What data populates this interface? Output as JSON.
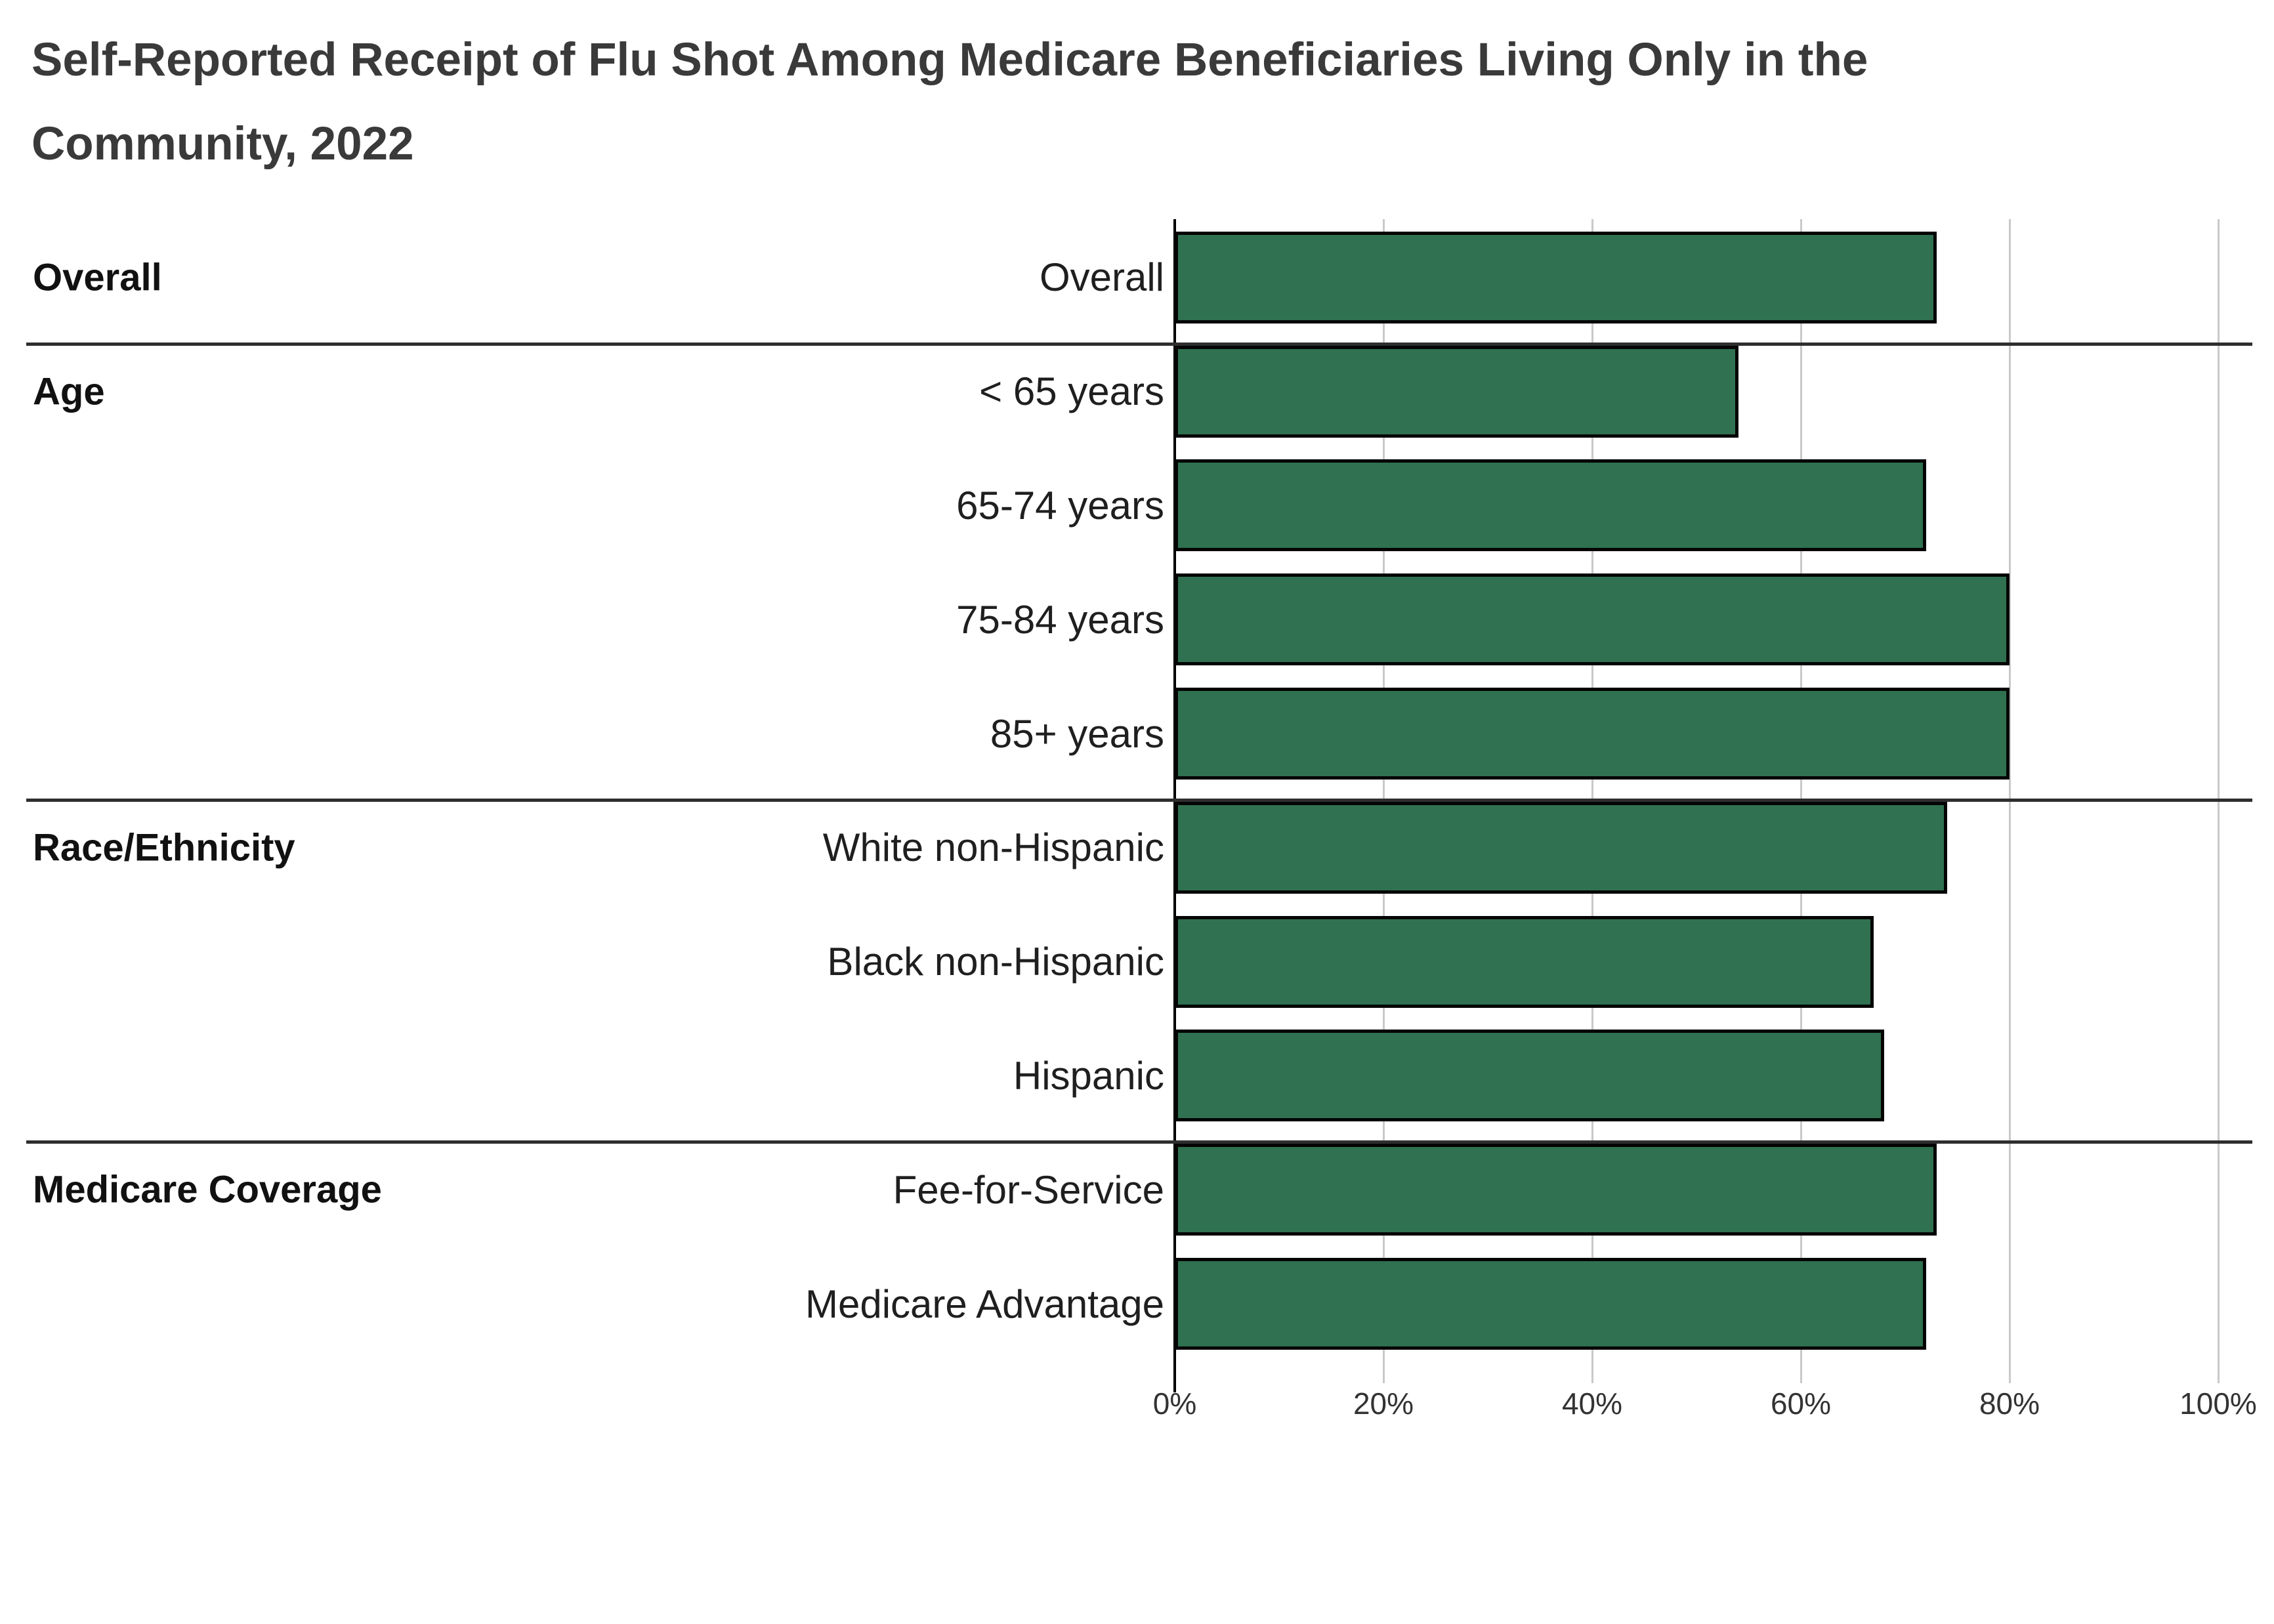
{
  "title_lines": [
    "Self-Reported Receipt of Flu Shot Among Medicare Beneficiaries Living Only in the",
    "Community, 2022"
  ],
  "chart_data": {
    "type": "bar",
    "orientation": "horizontal",
    "title": "Self-Reported Receipt of Flu Shot Among Medicare Beneficiaries Living Only in the Community, 2022",
    "unit": "percent",
    "xlim": [
      0,
      100
    ],
    "x_ticks": [
      "0%",
      "20%",
      "40%",
      "60%",
      "80%",
      "100%"
    ],
    "grid": true,
    "legend": "none",
    "groups": [
      {
        "label": "Overall",
        "items": [
          {
            "category": "Overall",
            "value": 73
          }
        ]
      },
      {
        "label": "Age",
        "items": [
          {
            "category": "< 65 years",
            "value": 54
          },
          {
            "category": "65-74 years",
            "value": 72
          },
          {
            "category": "75-84 years",
            "value": 80
          },
          {
            "category": "85+ years",
            "value": 80
          }
        ]
      },
      {
        "label": "Race/Ethnicity",
        "items": [
          {
            "category": "White non-Hispanic",
            "value": 74
          },
          {
            "category": "Black non-Hispanic",
            "value": 67
          },
          {
            "category": "Hispanic",
            "value": 68
          }
        ]
      },
      {
        "label": "Medicare Coverage",
        "items": [
          {
            "category": "Fee-for-Service",
            "value": 73
          },
          {
            "category": "Medicare Advantage",
            "value": 72
          }
        ]
      }
    ]
  },
  "colors": {
    "bar_fill": "#2f7150",
    "bar_border": "#040404",
    "gridline": "#c9c9c9",
    "axis_line": "#000000",
    "section_separator": "#2e2e2e",
    "title_text": "#3a3a3a",
    "label_text": "#1f1f1f",
    "tick_text": "#333333"
  }
}
